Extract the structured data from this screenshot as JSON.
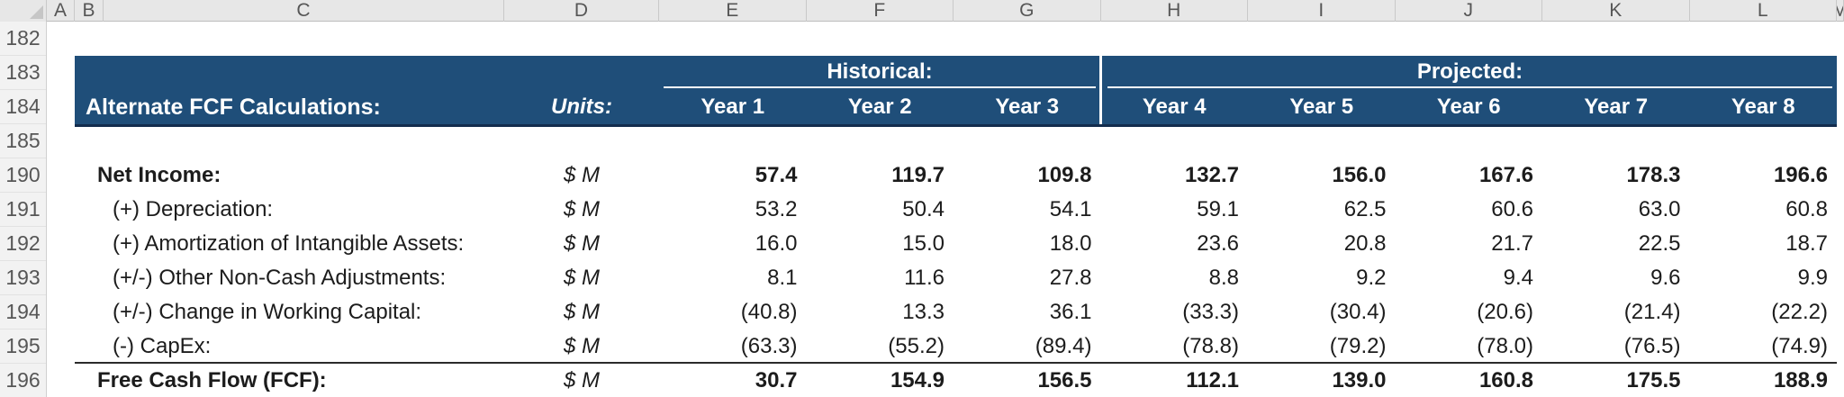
{
  "sheet": {
    "column_letters": [
      "A",
      "B",
      "C",
      "D",
      "E",
      "F",
      "G",
      "H",
      "I",
      "J",
      "K",
      "L",
      "M"
    ],
    "row_numbers": [
      "182",
      "183",
      "184",
      "185",
      "190",
      "191",
      "192",
      "193",
      "194",
      "195",
      "196"
    ]
  },
  "band": {
    "title": "Alternate FCF Calculations:",
    "units_label": "Units:",
    "historical_label": "Historical:",
    "projected_label": "Projected:",
    "years": [
      "Year 1",
      "Year 2",
      "Year 3",
      "Year 4",
      "Year 5",
      "Year 6",
      "Year 7",
      "Year 8"
    ],
    "colors": {
      "fill": "#1F4E79",
      "edge": "#132C4D",
      "text": "#FFFFFF"
    }
  },
  "table": {
    "units_value": "$ M",
    "rows": [
      {
        "label": "Net Income:",
        "bold": true,
        "indent": false,
        "values": [
          "57.4",
          "119.7",
          "109.8",
          "132.7",
          "156.0",
          "167.6",
          "178.3",
          "196.6"
        ]
      },
      {
        "label": "(+) Depreciation:",
        "bold": false,
        "indent": true,
        "values": [
          "53.2",
          "50.4",
          "54.1",
          "59.1",
          "62.5",
          "60.6",
          "63.0",
          "60.8"
        ]
      },
      {
        "label": "(+) Amortization of Intangible Assets:",
        "bold": false,
        "indent": true,
        "values": [
          "16.0",
          "15.0",
          "18.0",
          "23.6",
          "20.8",
          "21.7",
          "22.5",
          "18.7"
        ]
      },
      {
        "label": "(+/-) Other Non-Cash Adjustments:",
        "bold": false,
        "indent": true,
        "values": [
          "8.1",
          "11.6",
          "27.8",
          "8.8",
          "9.2",
          "9.4",
          "9.6",
          "9.9"
        ]
      },
      {
        "label": "(+/-) Change in Working Capital:",
        "bold": false,
        "indent": true,
        "values": [
          "(40.8)",
          "13.3",
          "36.1",
          "(33.3)",
          "(30.4)",
          "(20.6)",
          "(21.4)",
          "(22.2)"
        ]
      },
      {
        "label": "(-) CapEx:",
        "bold": false,
        "indent": true,
        "values": [
          "(63.3)",
          "(55.2)",
          "(89.4)",
          "(78.8)",
          "(79.2)",
          "(78.0)",
          "(76.5)",
          "(74.9)"
        ]
      },
      {
        "label": "Free Cash Flow (FCF):",
        "bold": true,
        "indent": false,
        "values": [
          "30.7",
          "154.9",
          "156.5",
          "112.1",
          "139.0",
          "160.8",
          "175.5",
          "188.9"
        ]
      }
    ]
  }
}
